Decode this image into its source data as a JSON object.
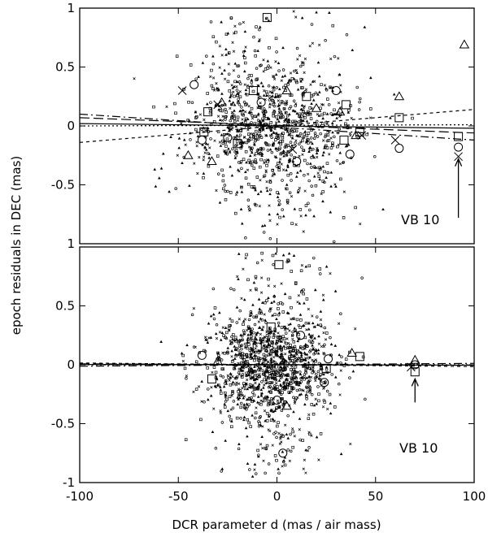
{
  "chart_data": [
    {
      "type": "scatter",
      "panel": "top",
      "xlabel": "",
      "ylabel": "epoch residuals in DEC (mas)",
      "xlim": [
        -100,
        100
      ],
      "ylim": [
        -1,
        1
      ],
      "y_ticks": [
        1,
        0.5,
        0,
        -0.5,
        1
      ],
      "y_tick_labels": [
        "1",
        "0.5",
        "0",
        "-0.5",
        "1"
      ],
      "annotation": {
        "text": "VB 10",
        "arrow_x": 92,
        "arrow_from_y": -0.78,
        "arrow_to_y": -0.28
      },
      "fit_lines": [
        {
          "style": "dashed",
          "x": [
            -100,
            100
          ],
          "y": [
            -0.14,
            0.14
          ]
        },
        {
          "style": "dash-dot",
          "x": [
            -100,
            100
          ],
          "y": [
            0.1,
            -0.12
          ]
        },
        {
          "style": "long-dash",
          "x": [
            -100,
            100
          ],
          "y": [
            0.07,
            -0.06
          ]
        },
        {
          "style": "dotted",
          "x": [
            -100,
            100
          ],
          "y": [
            0.0,
            0.01
          ]
        },
        {
          "style": "solid",
          "x": [
            -100,
            100
          ],
          "y": [
            0.02,
            -0.02
          ]
        }
      ],
      "highlighted_points": [
        {
          "marker": "triangle",
          "x": 95,
          "y": 0.69
        },
        {
          "marker": "square",
          "x": 92,
          "y": -0.09
        },
        {
          "marker": "circle",
          "x": 92,
          "y": -0.18
        },
        {
          "marker": "cross",
          "x": 92,
          "y": -0.26
        },
        {
          "marker": "square",
          "x": 62,
          "y": 0.07
        },
        {
          "marker": "triangle",
          "x": 62,
          "y": 0.25
        },
        {
          "marker": "circle",
          "x": 62,
          "y": -0.19
        },
        {
          "marker": "cross",
          "x": 60,
          "y": -0.12
        },
        {
          "marker": "square",
          "x": 35,
          "y": 0.18
        },
        {
          "marker": "triangle",
          "x": 32,
          "y": 0.12
        },
        {
          "marker": "circle",
          "x": 37,
          "y": -0.24
        },
        {
          "marker": "square",
          "x": 42,
          "y": -0.05
        },
        {
          "marker": "triangle",
          "x": 40,
          "y": -0.08
        },
        {
          "marker": "cross",
          "x": 43,
          "y": -0.08
        },
        {
          "marker": "square",
          "x": 34,
          "y": -0.12
        },
        {
          "marker": "circle",
          "x": 30,
          "y": 0.3
        },
        {
          "marker": "triangle",
          "x": -45,
          "y": -0.25
        },
        {
          "marker": "circle",
          "x": -42,
          "y": 0.35
        },
        {
          "marker": "cross",
          "x": -48,
          "y": 0.3
        },
        {
          "marker": "square",
          "x": -35,
          "y": 0.12
        },
        {
          "marker": "triangle",
          "x": -33,
          "y": -0.3
        },
        {
          "marker": "circle",
          "x": -38,
          "y": -0.12
        },
        {
          "marker": "cross",
          "x": -30,
          "y": 0.18
        },
        {
          "marker": "square",
          "x": -37,
          "y": -0.05
        },
        {
          "marker": "triangle",
          "x": -28,
          "y": 0.2
        },
        {
          "marker": "circle",
          "x": -25,
          "y": -0.1
        },
        {
          "marker": "square",
          "x": -20,
          "y": -0.15
        },
        {
          "marker": "triangle",
          "x": 5,
          "y": 0.3
        },
        {
          "marker": "circle",
          "x": 10,
          "y": -0.3
        },
        {
          "marker": "square",
          "x": 15,
          "y": 0.25
        },
        {
          "marker": "triangle",
          "x": 20,
          "y": 0.15
        },
        {
          "marker": "circle",
          "x": -8,
          "y": 0.2
        },
        {
          "marker": "square",
          "x": -12,
          "y": 0.3
        },
        {
          "marker": "cross",
          "x": 8,
          "y": -0.2
        },
        {
          "marker": "square",
          "x": -5,
          "y": 0.92
        }
      ],
      "point_cloud": {
        "n": 1100,
        "seed": 11,
        "x_center": -3,
        "x_sd": 20,
        "y_sd": 0.28,
        "x_range": [
          -95,
          72
        ],
        "y_range": [
          -0.99,
          0.99
        ]
      }
    },
    {
      "type": "scatter",
      "panel": "bottom",
      "xlabel": "DCR parameter d (mas / air mass)",
      "ylabel": "epoch residuals in DEC (mas)",
      "xlim": [
        -100,
        100
      ],
      "ylim": [
        -1,
        1
      ],
      "x_ticks": [
        -100,
        -50,
        0,
        50,
        100
      ],
      "y_ticks": [
        0.5,
        0,
        -0.5,
        -1
      ],
      "y_tick_labels": [
        "0.5",
        "0",
        "-0.5",
        "-1"
      ],
      "annotation": {
        "text": "VB 10",
        "arrow_x": 70,
        "arrow_from_y": -0.32,
        "arrow_to_y": -0.12
      },
      "fit_lines": [
        {
          "style": "dashed",
          "x": [
            -100,
            100
          ],
          "y": [
            0.015,
            -0.015
          ]
        },
        {
          "style": "dash-dot",
          "x": [
            -100,
            100
          ],
          "y": [
            -0.012,
            0.012
          ]
        },
        {
          "style": "long-dash",
          "x": [
            -100,
            100
          ],
          "y": [
            0.008,
            -0.005
          ]
        },
        {
          "style": "dotted",
          "x": [
            -100,
            100
          ],
          "y": [
            0.0,
            0.0
          ]
        },
        {
          "style": "solid",
          "x": [
            -100,
            100
          ],
          "y": [
            0.003,
            -0.003
          ]
        }
      ],
      "highlighted_points": [
        {
          "marker": "triangle",
          "x": 70,
          "y": 0.04
        },
        {
          "marker": "circle",
          "x": 70,
          "y": 0.0
        },
        {
          "marker": "square",
          "x": 70,
          "y": -0.06
        },
        {
          "marker": "cross",
          "x": 68,
          "y": -0.02
        },
        {
          "marker": "square",
          "x": 42,
          "y": 0.07
        },
        {
          "marker": "triangle",
          "x": 38,
          "y": 0.1
        },
        {
          "marker": "circle",
          "x": 26,
          "y": 0.05
        },
        {
          "marker": "square",
          "x": 25,
          "y": -0.03
        },
        {
          "marker": "circle",
          "x": 24,
          "y": -0.15
        },
        {
          "marker": "triangle",
          "x": -30,
          "y": 0.03
        },
        {
          "marker": "square",
          "x": -33,
          "y": -0.12
        },
        {
          "marker": "circle",
          "x": -38,
          "y": 0.08
        },
        {
          "marker": "square",
          "x": -10,
          "y": 0.15
        },
        {
          "marker": "circle",
          "x": 0,
          "y": -0.3
        },
        {
          "marker": "triangle",
          "x": 5,
          "y": -0.35
        },
        {
          "marker": "circle",
          "x": 3,
          "y": -0.75
        },
        {
          "marker": "square",
          "x": 1,
          "y": 0.85
        },
        {
          "marker": "square",
          "x": -3,
          "y": 0.32
        },
        {
          "marker": "circle",
          "x": 12,
          "y": 0.25
        }
      ],
      "point_cloud": {
        "n": 1300,
        "seed": 27,
        "x_center": -2,
        "x_sd": 16,
        "y_sd": 0.24,
        "x_range": [
          -85,
          65
        ],
        "y_range": [
          -0.97,
          0.95
        ]
      }
    }
  ]
}
